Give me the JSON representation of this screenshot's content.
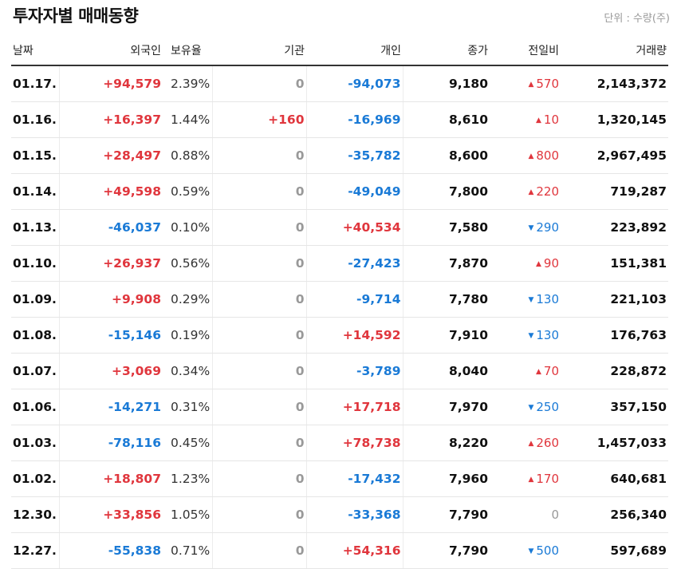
{
  "header": {
    "title": "투자자별 매매동향",
    "unit": "단위 : 수량(주)"
  },
  "columns": {
    "date": "날짜",
    "foreign": "외국인",
    "holding": "보유율",
    "institution": "기관",
    "individual": "개인",
    "close": "종가",
    "change": "전일비",
    "volume": "거래량"
  },
  "colors": {
    "up": "#e0363d",
    "down": "#1a7ad6",
    "neutral": "#999999"
  },
  "rows": [
    {
      "date": "01.17.",
      "foreign": "+94,579",
      "holding": "2.39%",
      "institution": "0",
      "individual": "-94,073",
      "close": "9,180",
      "change": "570",
      "direction": "up",
      "volume": "2,143,372"
    },
    {
      "date": "01.16.",
      "foreign": "+16,397",
      "holding": "1.44%",
      "institution": "+160",
      "individual": "-16,969",
      "close": "8,610",
      "change": "10",
      "direction": "up",
      "volume": "1,320,145"
    },
    {
      "date": "01.15.",
      "foreign": "+28,497",
      "holding": "0.88%",
      "institution": "0",
      "individual": "-35,782",
      "close": "8,600",
      "change": "800",
      "direction": "up",
      "volume": "2,967,495"
    },
    {
      "date": "01.14.",
      "foreign": "+49,598",
      "holding": "0.59%",
      "institution": "0",
      "individual": "-49,049",
      "close": "7,800",
      "change": "220",
      "direction": "up",
      "volume": "719,287"
    },
    {
      "date": "01.13.",
      "foreign": "-46,037",
      "holding": "0.10%",
      "institution": "0",
      "individual": "+40,534",
      "close": "7,580",
      "change": "290",
      "direction": "down",
      "volume": "223,892"
    },
    {
      "date": "01.10.",
      "foreign": "+26,937",
      "holding": "0.56%",
      "institution": "0",
      "individual": "-27,423",
      "close": "7,870",
      "change": "90",
      "direction": "up",
      "volume": "151,381"
    },
    {
      "date": "01.09.",
      "foreign": "+9,908",
      "holding": "0.29%",
      "institution": "0",
      "individual": "-9,714",
      "close": "7,780",
      "change": "130",
      "direction": "down",
      "volume": "221,103"
    },
    {
      "date": "01.08.",
      "foreign": "-15,146",
      "holding": "0.19%",
      "institution": "0",
      "individual": "+14,592",
      "close": "7,910",
      "change": "130",
      "direction": "down",
      "volume": "176,763"
    },
    {
      "date": "01.07.",
      "foreign": "+3,069",
      "holding": "0.34%",
      "institution": "0",
      "individual": "-3,789",
      "close": "8,040",
      "change": "70",
      "direction": "up",
      "volume": "228,872"
    },
    {
      "date": "01.06.",
      "foreign": "-14,271",
      "holding": "0.31%",
      "institution": "0",
      "individual": "+17,718",
      "close": "7,970",
      "change": "250",
      "direction": "down",
      "volume": "357,150"
    },
    {
      "date": "01.03.",
      "foreign": "-78,116",
      "holding": "0.45%",
      "institution": "0",
      "individual": "+78,738",
      "close": "8,220",
      "change": "260",
      "direction": "up",
      "volume": "1,457,033"
    },
    {
      "date": "01.02.",
      "foreign": "+18,807",
      "holding": "1.23%",
      "institution": "0",
      "individual": "-17,432",
      "close": "7,960",
      "change": "170",
      "direction": "up",
      "volume": "640,681"
    },
    {
      "date": "12.30.",
      "foreign": "+33,856",
      "holding": "1.05%",
      "institution": "0",
      "individual": "-33,368",
      "close": "7,790",
      "change": "0",
      "direction": "flat",
      "volume": "256,340"
    },
    {
      "date": "12.27.",
      "foreign": "-55,838",
      "holding": "0.71%",
      "institution": "0",
      "individual": "+54,316",
      "close": "7,790",
      "change": "500",
      "direction": "down",
      "volume": "597,689"
    }
  ]
}
